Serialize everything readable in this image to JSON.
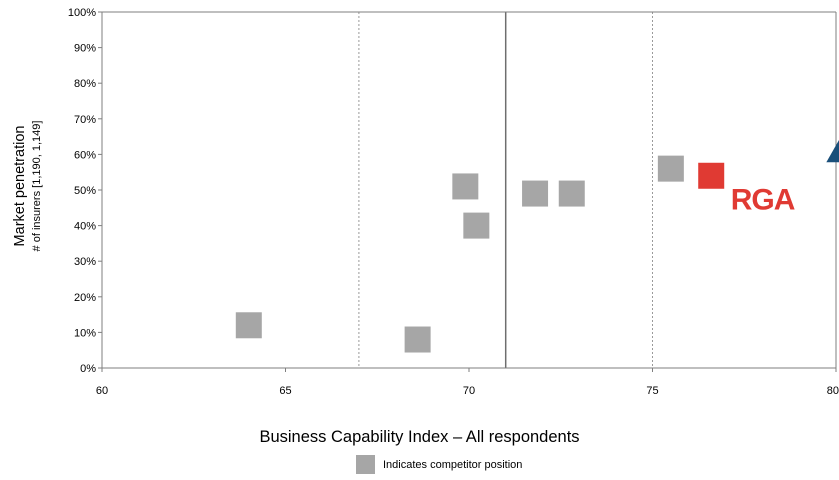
{
  "chart_data": {
    "type": "scatter",
    "xlabel": "Business Capability Index – All respondents",
    "ylabel": "Market penetration",
    "ylabel_sub": "# of insurers [1,190, 1,149]",
    "xlim": [
      60,
      80
    ],
    "ylim": [
      0,
      100
    ],
    "x_ticks": [
      "60",
      "65",
      "70",
      "75",
      "80"
    ],
    "y_ticks": [
      "0%",
      "10%",
      "20%",
      "30%",
      "40%",
      "50%",
      "60%",
      "70%",
      "80%",
      "90%",
      "100%"
    ],
    "reference_lines": [
      {
        "x": 67,
        "style": "dotted"
      },
      {
        "x": 71,
        "style": "solid"
      },
      {
        "x": 75,
        "style": "dotted"
      }
    ],
    "series": [
      {
        "name": "Indicates competitor position",
        "color": "#a6a6a6",
        "marker": "square",
        "points": [
          {
            "x": 64.0,
            "y": 12
          },
          {
            "x": 68.6,
            "y": 8
          },
          {
            "x": 69.9,
            "y": 51
          },
          {
            "x": 70.2,
            "y": 40
          },
          {
            "x": 71.8,
            "y": 49
          },
          {
            "x": 72.8,
            "y": 49
          },
          {
            "x": 75.5,
            "y": 56
          }
        ]
      },
      {
        "color": "#e03a33",
        "marker": "square",
        "points": [
          {
            "x": 76.6,
            "y": 54
          }
        ]
      },
      {
        "color": "#1a4f7a",
        "marker": "triangle",
        "points": [
          {
            "x": 80.2,
            "y": 62
          }
        ]
      }
    ],
    "annotations": [
      {
        "text": "RGA",
        "x": 78.0,
        "y": 44.5,
        "color": "#e03a33"
      }
    ],
    "legend": {
      "label": "Indicates competitor position",
      "placement": "bottom"
    }
  }
}
